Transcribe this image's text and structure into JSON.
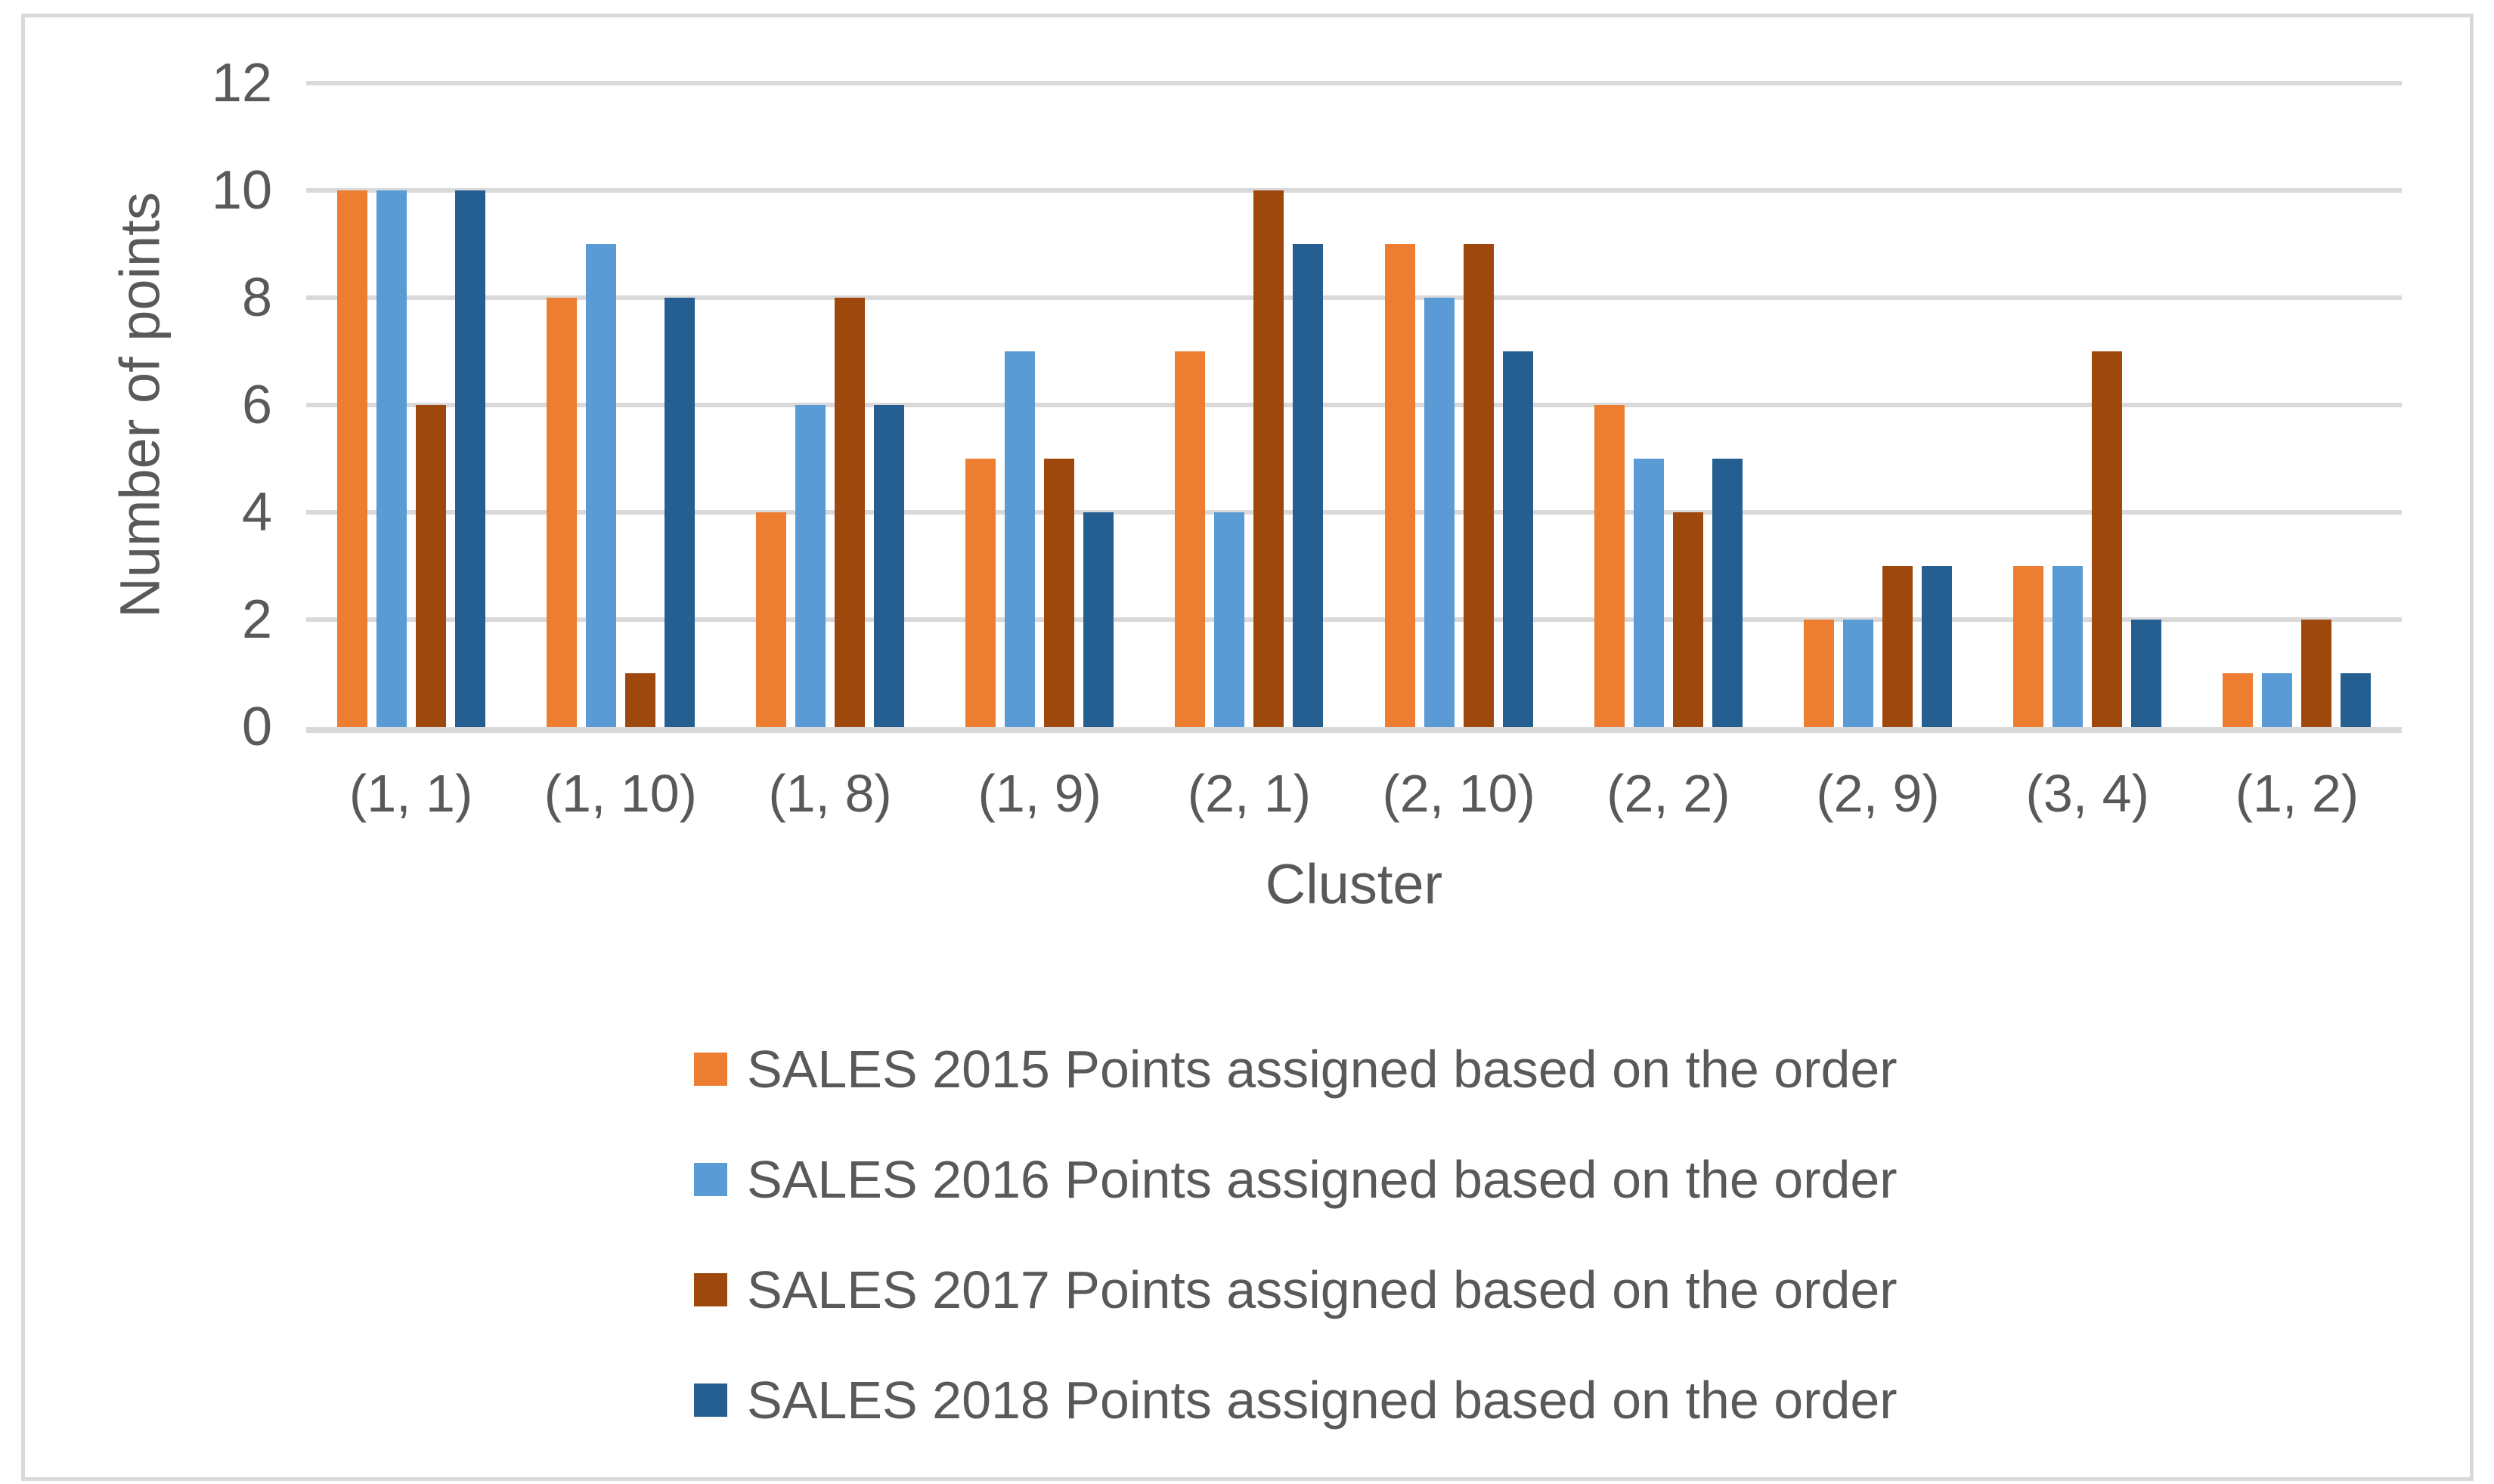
{
  "colors": {
    "text": "#595959",
    "grid": "#D9D9D9",
    "frame_border": "#D9D9D9",
    "background": "#FFFFFF"
  },
  "chart_data": {
    "type": "bar",
    "title": "",
    "xlabel": "Cluster",
    "ylabel": "Number of points",
    "categories": [
      "(1, 1)",
      "(1, 10)",
      "(1, 8)",
      "(1, 9)",
      "(2, 1)",
      "(2, 10)",
      "(2, 2)",
      "(2, 9)",
      "(3, 4)",
      "(1, 2)"
    ],
    "series": [
      {
        "name": "SALES 2015 Points assigned based on the order",
        "color": "#ED7D31",
        "values": [
          10,
          8,
          4,
          5,
          7,
          9,
          6,
          2,
          3,
          1
        ]
      },
      {
        "name": "SALES 2016 Points assigned based on the order",
        "color": "#5B9BD5",
        "values": [
          10,
          9,
          6,
          7,
          4,
          8,
          5,
          2,
          3,
          1
        ]
      },
      {
        "name": "SALES 2017 Points assigned based on the order",
        "color": "#9E480E",
        "values": [
          6,
          1,
          8,
          5,
          10,
          9,
          4,
          3,
          7,
          2
        ]
      },
      {
        "name": "SALES 2018 Points assigned based on the order",
        "color": "#255E91",
        "values": [
          10,
          8,
          6,
          4,
          9,
          7,
          5,
          3,
          2,
          1
        ]
      }
    ],
    "ylim": [
      0,
      12
    ],
    "yticks": [
      0,
      2,
      4,
      6,
      8,
      10,
      12
    ],
    "grid": true,
    "legend_position": "bottom"
  }
}
